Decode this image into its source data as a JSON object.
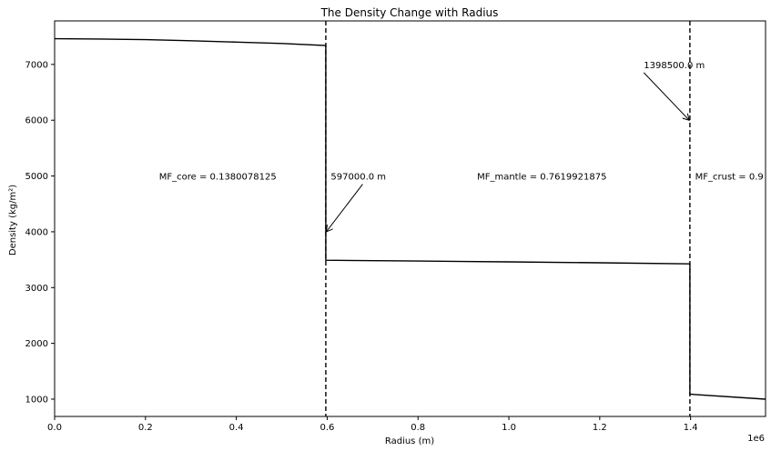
{
  "chart_data": {
    "type": "line",
    "title": "The Density Change with Radius",
    "xlabel": "Radius (m)",
    "ylabel": "Density (kg/m²)",
    "x_offset_label": "1e6",
    "xlim": [
      0,
      1565000
    ],
    "ylim": [
      690,
      7780
    ],
    "xticks": [
      {
        "value": 0,
        "label": "0.0"
      },
      {
        "value": 200000,
        "label": "0.2"
      },
      {
        "value": 400000,
        "label": "0.4"
      },
      {
        "value": 600000,
        "label": "0.6"
      },
      {
        "value": 800000,
        "label": "0.8"
      },
      {
        "value": 1000000,
        "label": "1.0"
      },
      {
        "value": 1200000,
        "label": "1.2"
      },
      {
        "value": 1400000,
        "label": "1.4"
      }
    ],
    "yticks": [
      {
        "value": 1000,
        "label": "1000"
      },
      {
        "value": 2000,
        "label": "2000"
      },
      {
        "value": 3000,
        "label": "3000"
      },
      {
        "value": 4000,
        "label": "4000"
      },
      {
        "value": 5000,
        "label": "5000"
      },
      {
        "value": 6000,
        "label": "6000"
      },
      {
        "value": 7000,
        "label": "7000"
      }
    ],
    "grid": false,
    "line_color": "#000000",
    "series": [
      {
        "points": [
          [
            0,
            7460
          ],
          [
            100000,
            7455
          ],
          [
            200000,
            7445
          ],
          [
            300000,
            7425
          ],
          [
            400000,
            7400
          ],
          [
            500000,
            7375
          ],
          [
            597000,
            7340
          ],
          [
            597000,
            3490
          ],
          [
            800000,
            3475
          ],
          [
            1000000,
            3460
          ],
          [
            1200000,
            3445
          ],
          [
            1398500,
            3425
          ],
          [
            1398500,
            1090
          ],
          [
            1565000,
            1000
          ]
        ]
      }
    ],
    "vlines": [
      {
        "x": 597000,
        "style": "dashed"
      },
      {
        "x": 1398500,
        "style": "dashed"
      }
    ],
    "annotations": [
      {
        "text": "MF_core = 0.1380078125",
        "x": 230000,
        "y": 5000,
        "arrow": false
      },
      {
        "text": "597000.0 m",
        "x": 608000,
        "y": 5000,
        "arrow": true,
        "arrow_to": [
          598000,
          4000
        ]
      },
      {
        "text": "MF_mantle = 0.7619921875",
        "x": 930000,
        "y": 5000,
        "arrow": false
      },
      {
        "text": "1398500.0 m",
        "x": 1297000,
        "y": 7000,
        "arrow": true,
        "arrow_to": [
          1397000,
          6000
        ]
      },
      {
        "text": "MF_crust = 0.9",
        "x": 1410000,
        "y": 5000,
        "arrow": false
      }
    ]
  }
}
